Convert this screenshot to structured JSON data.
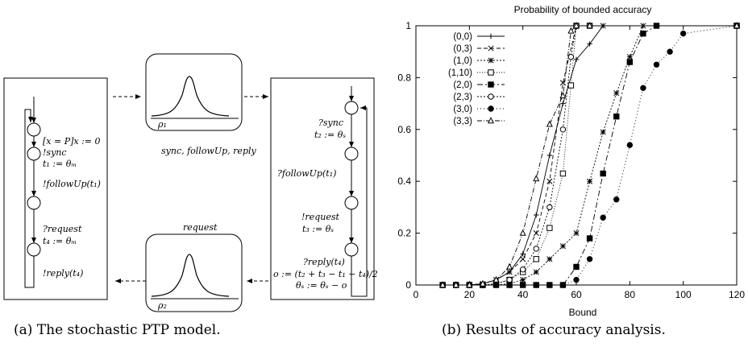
{
  "figure_a": {
    "caption": "(a) The stochastic PTP model.",
    "master_labels": [
      "[x = P]x := 0",
      "!sync",
      "t₁ := θₘ",
      "!followUp(t₁)",
      "?request",
      "t₄ := θₘ",
      "!reply(t₄)"
    ],
    "slave_labels": [
      "?sync",
      "t₂ := θₛ",
      "?followUp(t₁)",
      "!request",
      "t₃ := θₛ",
      "?reply(t₄)",
      "o := (t₂ + t₃ − t₁ − t₄)/2",
      "θₛ := θₛ − o"
    ],
    "delay_top_label": "ρ₁",
    "delay_top_messages": "sync, followUp, reply",
    "delay_bottom_label": "ρ₂",
    "delay_bottom_messages": "request"
  },
  "figure_b": {
    "caption": "(b) Results of accuracy analysis."
  },
  "chart_data": {
    "type": "line",
    "title": "Probability of bounded accuracy",
    "xlabel": "Bound",
    "ylabel": "",
    "xlim": [
      0,
      120
    ],
    "ylim": [
      0,
      1
    ],
    "xticks": [
      0,
      20,
      40,
      60,
      80,
      100,
      120
    ],
    "yticks": [
      0,
      0.2,
      0.4,
      0.6,
      0.8,
      1
    ],
    "grid": false,
    "legend_position": "top-left",
    "series": [
      {
        "name": "(0,0)",
        "marker": "+",
        "dash": "",
        "x": [
          10,
          15,
          20,
          25,
          30,
          35,
          40,
          45,
          50,
          55,
          60,
          65,
          70,
          120
        ],
        "y": [
          0,
          0,
          0,
          0.005,
          0.02,
          0.05,
          0.12,
          0.27,
          0.5,
          0.7,
          0.87,
          0.93,
          1,
          1
        ]
      },
      {
        "name": "(0,3)",
        "marker": "x",
        "dash": "5,3",
        "x": [
          10,
          15,
          20,
          25,
          30,
          35,
          40,
          45,
          50,
          55,
          60,
          65,
          70,
          120
        ],
        "y": [
          0,
          0,
          0,
          0.005,
          0.02,
          0.05,
          0.1,
          0.2,
          0.4,
          0.78,
          1,
          1,
          1,
          1
        ]
      },
      {
        "name": "(1,0)",
        "marker": "*",
        "dash": "2,2",
        "x": [
          10,
          15,
          20,
          25,
          30,
          35,
          40,
          45,
          50,
          55,
          60,
          65,
          70,
          75,
          80,
          85,
          90,
          120
        ],
        "y": [
          0,
          0,
          0,
          0,
          0,
          0.005,
          0.02,
          0.05,
          0.1,
          0.15,
          0.2,
          0.4,
          0.59,
          0.74,
          0.88,
          1,
          1,
          1
        ]
      },
      {
        "name": "(1,10)",
        "marker": "square",
        "dash": "1,2",
        "x": [
          10,
          15,
          20,
          25,
          30,
          35,
          40,
          45,
          50,
          55,
          58,
          60,
          65,
          120
        ],
        "y": [
          0,
          0,
          0,
          0,
          0.005,
          0.02,
          0.05,
          0.1,
          0.22,
          0.43,
          0.77,
          1,
          1,
          1
        ]
      },
      {
        "name": "(2,0)",
        "marker": "filled-square",
        "dash": "7,3,2,3",
        "x": [
          10,
          15,
          20,
          25,
          30,
          35,
          40,
          45,
          50,
          55,
          60,
          65,
          70,
          75,
          80,
          85,
          90,
          120
        ],
        "y": [
          0,
          0,
          0,
          0,
          0,
          0,
          0,
          0,
          0,
          0,
          0.07,
          0.18,
          0.43,
          0.65,
          0.86,
          0.97,
          1,
          1
        ]
      },
      {
        "name": "(2,3)",
        "marker": "circle",
        "dash": "2,2",
        "x": [
          10,
          15,
          20,
          25,
          30,
          35,
          40,
          45,
          50,
          55,
          58,
          60,
          65,
          120
        ],
        "y": [
          0,
          0,
          0,
          0,
          0.005,
          0.02,
          0.06,
          0.14,
          0.3,
          0.6,
          0.88,
          1,
          1,
          1
        ]
      },
      {
        "name": "(3,0)",
        "marker": "filled-circle",
        "dash": "1,3",
        "x": [
          10,
          15,
          20,
          25,
          30,
          35,
          40,
          45,
          50,
          55,
          60,
          65,
          70,
          75,
          80,
          85,
          90,
          95,
          100,
          120
        ],
        "y": [
          0,
          0,
          0,
          0,
          0,
          0,
          0,
          0,
          0,
          0,
          0.02,
          0.1,
          0.26,
          0.33,
          0.54,
          0.76,
          0.85,
          0.9,
          0.97,
          1
        ]
      },
      {
        "name": "(3,3)",
        "marker": "triangle",
        "dash": "6,2,1,2",
        "x": [
          10,
          15,
          20,
          25,
          30,
          35,
          40,
          45,
          50,
          55,
          58,
          60,
          65,
          120
        ],
        "y": [
          0,
          0,
          0,
          0.005,
          0.02,
          0.07,
          0.2,
          0.41,
          0.62,
          0.73,
          0.98,
          1,
          1,
          1
        ]
      }
    ]
  }
}
